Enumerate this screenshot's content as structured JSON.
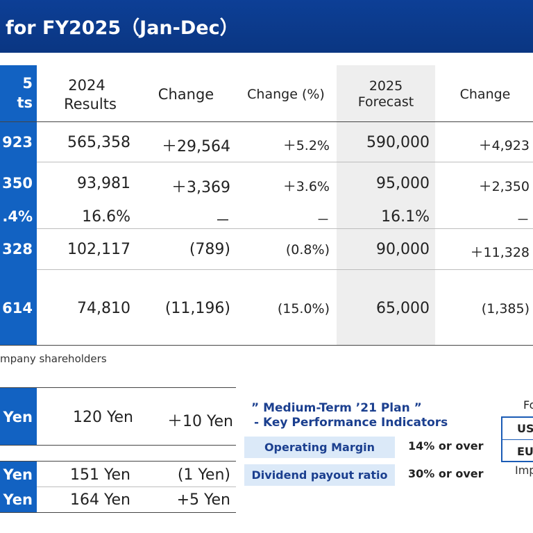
{
  "title": "for FY2025（Jan-Dec）",
  "main_table": {
    "headers": {
      "left_cut_top": "5",
      "left_cut_bottom": "ts",
      "results_2024": [
        "2024",
        "Results"
      ],
      "change": "Change",
      "change_pct": "Change (%)",
      "forecast_2025": [
        "2025",
        "Forecast"
      ],
      "change2": "Change"
    },
    "rows": [
      {
        "left": "923",
        "results": "565,358",
        "change": "＋29,564",
        "pct": "＋5.2%",
        "forecast": "590,000",
        "change2": "＋4,923"
      },
      {
        "left": "350",
        "results": "93,981",
        "change": "＋3,369",
        "pct": "＋3.6%",
        "forecast": "95,000",
        "change2": "＋2,350"
      },
      {
        "left": ".4%",
        "results": "16.6%",
        "change": "－",
        "pct": "－",
        "forecast": "16.1%",
        "change2": "－"
      },
      {
        "left": "328",
        "results": "102,117",
        "change": "(789)",
        "pct": "(0.8%)",
        "forecast": "90,000",
        "change2": "＋11,328"
      },
      {
        "left": "614",
        "results": "74,810",
        "change": "(11,196)",
        "pct": "(15.0%)",
        "forecast": "65,000",
        "change2": "(1,385)"
      }
    ]
  },
  "footnote": "mpany shareholders",
  "dividend_table": {
    "rows": [
      {
        "left": "Yen",
        "value": "120 Yen",
        "change": "＋10 Yen"
      },
      {
        "left": "Yen",
        "value": "151 Yen",
        "change": "(1 Yen)"
      },
      {
        "left": "Yen",
        "value": "164 Yen",
        "change": "+5 Yen"
      }
    ]
  },
  "kpi": {
    "title_line1": "” Medium-Term ’21 Plan ”",
    "title_line2": "- Key Performance Indicators",
    "items": [
      {
        "label": "Operating Margin",
        "value": "14% or over"
      },
      {
        "label": "Dividend payout ratio",
        "value": "30% or over"
      }
    ]
  },
  "fx": {
    "label": "Fo",
    "rows": [
      "US",
      "EU"
    ],
    "footer": "Imp"
  },
  "colors": {
    "banner": "#0d3f96",
    "side_blue": "#1262c2",
    "forecast_gray": "#eeeeee",
    "kpi_box": "#dbe9f8",
    "kpi_text": "#1b3f8f"
  }
}
